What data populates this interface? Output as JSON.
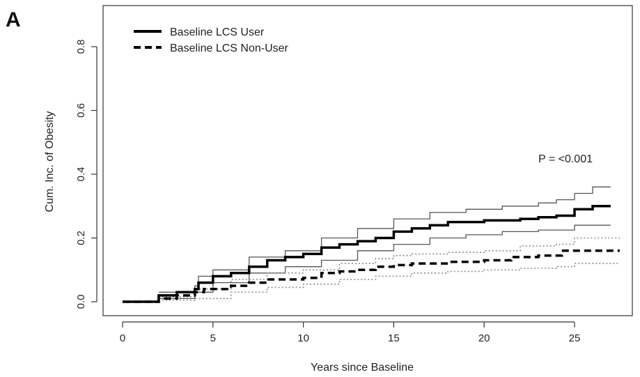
{
  "panel_label": "A",
  "chart_data": {
    "type": "line",
    "title": "",
    "xlabel": "Years since Baseline",
    "ylabel": "Cum. Inc. of Obesity",
    "xlim": [
      0,
      28
    ],
    "ylim": [
      0,
      0.9
    ],
    "x_ticks": [
      0,
      5,
      10,
      15,
      20,
      25
    ],
    "x_tick_labels": [
      "0",
      "5",
      "10",
      "15",
      "20",
      "25"
    ],
    "y_ticks": [
      0.0,
      0.2,
      0.4,
      0.6,
      0.8
    ],
    "y_tick_labels": [
      "0.0",
      "0.2",
      "0.4",
      "0.6",
      "0.8"
    ],
    "grid": false,
    "legend_position": "top-left",
    "annotation": "P = <0.001",
    "series": [
      {
        "name": "Baseline LCS User",
        "style": "solid",
        "color": "#000000",
        "points": [
          [
            0,
            0
          ],
          [
            2,
            0
          ],
          [
            2,
            0.02
          ],
          [
            3,
            0.03
          ],
          [
            4,
            0.04
          ],
          [
            4.2,
            0.06
          ],
          [
            5,
            0.08
          ],
          [
            6,
            0.09
          ],
          [
            7,
            0.11
          ],
          [
            8,
            0.13
          ],
          [
            9,
            0.14
          ],
          [
            10,
            0.15
          ],
          [
            11,
            0.17
          ],
          [
            12,
            0.18
          ],
          [
            13,
            0.19
          ],
          [
            14,
            0.2
          ],
          [
            15,
            0.22
          ],
          [
            16,
            0.23
          ],
          [
            17,
            0.24
          ],
          [
            18,
            0.25
          ],
          [
            19,
            0.25
          ],
          [
            20,
            0.255
          ],
          [
            21,
            0.255
          ],
          [
            22,
            0.26
          ],
          [
            23,
            0.265
          ],
          [
            24,
            0.27
          ],
          [
            25,
            0.29
          ],
          [
            26,
            0.3
          ],
          [
            27,
            0.3
          ]
        ],
        "ci_lower": [
          [
            2,
            0.01
          ],
          [
            4,
            0.03
          ],
          [
            5,
            0.06
          ],
          [
            7,
            0.09
          ],
          [
            9,
            0.11
          ],
          [
            11,
            0.13
          ],
          [
            13,
            0.16
          ],
          [
            15,
            0.18
          ],
          [
            17,
            0.2
          ],
          [
            19,
            0.21
          ],
          [
            21,
            0.22
          ],
          [
            23,
            0.225
          ],
          [
            25,
            0.24
          ],
          [
            27,
            0.24
          ]
        ],
        "ci_upper": [
          [
            2,
            0.03
          ],
          [
            4,
            0.05
          ],
          [
            4.2,
            0.08
          ],
          [
            5,
            0.1
          ],
          [
            7,
            0.14
          ],
          [
            9,
            0.16
          ],
          [
            11,
            0.2
          ],
          [
            13,
            0.23
          ],
          [
            15,
            0.26
          ],
          [
            17,
            0.28
          ],
          [
            19,
            0.29
          ],
          [
            21,
            0.3
          ],
          [
            23,
            0.31
          ],
          [
            24,
            0.32
          ],
          [
            25,
            0.34
          ],
          [
            26,
            0.36
          ],
          [
            27,
            0.36
          ]
        ]
      },
      {
        "name": "Baseline LCS Non-User",
        "style": "dashed",
        "color": "#000000",
        "points": [
          [
            0,
            0
          ],
          [
            2,
            0
          ],
          [
            2,
            0.01
          ],
          [
            3,
            0.02
          ],
          [
            4,
            0.03
          ],
          [
            4.5,
            0.04
          ],
          [
            6,
            0.05
          ],
          [
            7,
            0.06
          ],
          [
            8,
            0.07
          ],
          [
            9,
            0.07
          ],
          [
            10,
            0.075
          ],
          [
            11,
            0.09
          ],
          [
            12,
            0.095
          ],
          [
            13,
            0.1
          ],
          [
            14,
            0.11
          ],
          [
            15,
            0.115
          ],
          [
            16,
            0.12
          ],
          [
            18,
            0.125
          ],
          [
            20,
            0.13
          ],
          [
            21,
            0.13
          ],
          [
            21.5,
            0.14
          ],
          [
            23,
            0.145
          ],
          [
            24,
            0.145
          ],
          [
            24.3,
            0.16
          ],
          [
            25,
            0.16
          ],
          [
            26,
            0.16
          ],
          [
            27.5,
            0.16
          ]
        ],
        "ci_lower": [
          [
            2,
            0.005
          ],
          [
            4,
            0.01
          ],
          [
            6,
            0.03
          ],
          [
            8,
            0.045
          ],
          [
            10,
            0.055
          ],
          [
            12,
            0.07
          ],
          [
            14,
            0.08
          ],
          [
            16,
            0.09
          ],
          [
            18,
            0.095
          ],
          [
            20,
            0.1
          ],
          [
            22,
            0.105
          ],
          [
            24,
            0.11
          ],
          [
            25,
            0.12
          ],
          [
            27.5,
            0.12
          ]
        ],
        "ci_upper": [
          [
            2,
            0.015
          ],
          [
            4,
            0.04
          ],
          [
            6,
            0.07
          ],
          [
            8,
            0.09
          ],
          [
            10,
            0.1
          ],
          [
            12,
            0.12
          ],
          [
            14,
            0.135
          ],
          [
            15,
            0.145
          ],
          [
            16,
            0.15
          ],
          [
            18,
            0.155
          ],
          [
            20,
            0.16
          ],
          [
            22,
            0.175
          ],
          [
            24,
            0.18
          ],
          [
            25,
            0.2
          ],
          [
            27.5,
            0.2
          ]
        ]
      }
    ]
  }
}
